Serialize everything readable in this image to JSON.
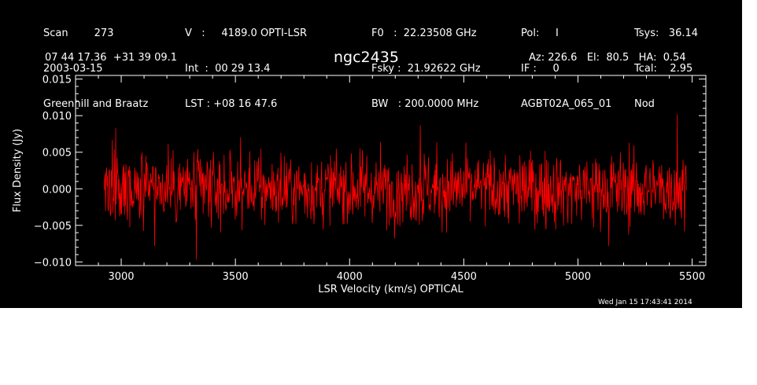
{
  "header": {
    "col1": [
      "Scan        273",
      "2003-03-15",
      "Greenhill and Braatz"
    ],
    "col2": [
      "V   :     4189.0 OPTI-LSR",
      "Int  :  00 29 13.4",
      "LST : +08 16 47.6"
    ],
    "col3": [
      "F0   :  22.23508 GHz",
      "Fsky :  21.92622 GHz",
      "BW   : 200.0000 MHz"
    ],
    "col4": [
      "Pol:     I",
      "IF :     0",
      "AGBT02A_065_01"
    ],
    "col5": [
      "Tsys:   36.14",
      "Tcal:    2.95",
      "Nod"
    ],
    "coords": "07 44 17.36  +31 39 09.1",
    "source": "ngc2435",
    "pointing": "Az: 226.6   El:  80.5   HA:  0.54",
    "timestamp": "Wed Jan 15 17:43:41 2014"
  },
  "colors": {
    "background": "#000000",
    "axes": "#ffffff",
    "trace": "#ff0000"
  },
  "chart_data": {
    "type": "line",
    "title": "ngc2435",
    "xlabel": "LSR Velocity (km/s) OPTICAL",
    "ylabel": "Flux Density (Jy)",
    "xlim": [
      2800,
      5560
    ],
    "ylim": [
      -0.0105,
      0.0155
    ],
    "xticks": [
      3000,
      3500,
      4000,
      4500,
      5000,
      5500
    ],
    "xtick_labels": [
      "3000",
      "3500",
      "4000",
      "4500",
      "5000",
      "5500"
    ],
    "yticks": [
      -0.01,
      -0.005,
      0.0,
      0.005,
      0.01,
      0.015
    ],
    "ytick_labels": [
      "−0.010",
      "−0.005",
      "0.000",
      "0.005",
      "0.010",
      "0.015"
    ],
    "grid": false,
    "series": [
      {
        "x_start": 2925,
        "x_end": 5475,
        "n_points": 1200,
        "mean": 0.0,
        "noise_rms": 0.0025,
        "min": -0.0097,
        "max": 0.0102,
        "extremes": [
          [
            3330,
            -0.0097
          ],
          [
            5435,
            0.0102
          ],
          [
            4310,
            0.0087
          ],
          [
            2975,
            0.0083
          ],
          [
            5135,
            -0.0078
          ]
        ]
      }
    ]
  }
}
